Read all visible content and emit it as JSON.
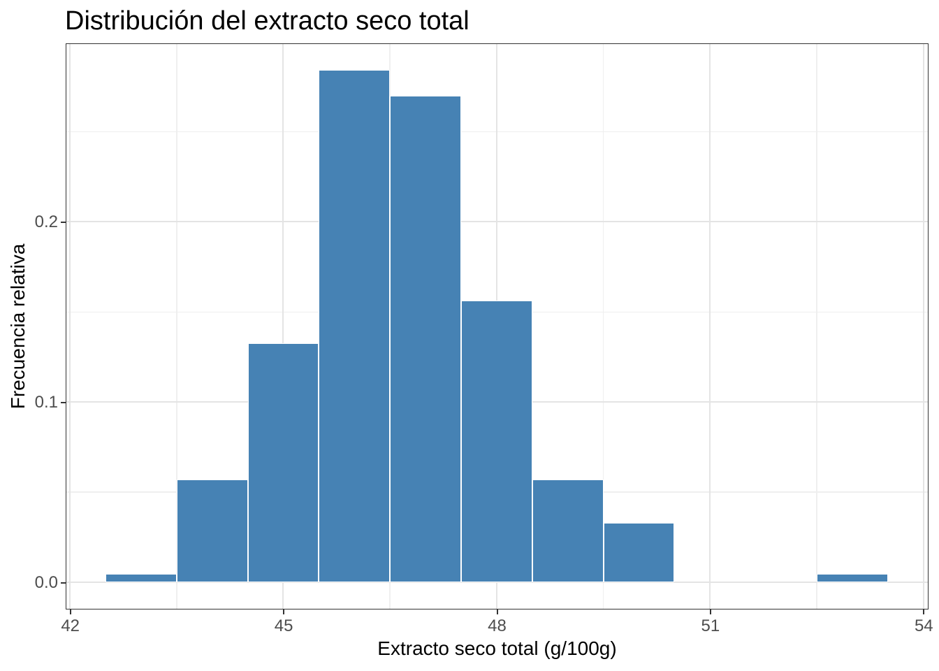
{
  "chart": {
    "title": "Distribución del extracto seco total",
    "x_label": "Extracto seco total (g/100g)",
    "y_label": "Frecuencia relativa"
  },
  "chart_data": {
    "type": "bar",
    "subtype": "histogram",
    "title": "Distribución del extracto seco total",
    "xlabel": "Extracto seco total (g/100g)",
    "ylabel": "Frecuencia relativa",
    "bins": [
      {
        "x0": 42.5,
        "x1": 43.5,
        "y": 0.0047
      },
      {
        "x0": 43.5,
        "x1": 44.5,
        "y": 0.0569
      },
      {
        "x0": 44.5,
        "x1": 45.5,
        "y": 0.1327
      },
      {
        "x0": 45.5,
        "x1": 46.5,
        "y": 0.2844
      },
      {
        "x0": 46.5,
        "x1": 47.5,
        "y": 0.2701
      },
      {
        "x0": 47.5,
        "x1": 48.5,
        "y": 0.1564
      },
      {
        "x0": 48.5,
        "x1": 49.5,
        "y": 0.0569
      },
      {
        "x0": 49.5,
        "x1": 50.5,
        "y": 0.0332
      },
      {
        "x0": 50.5,
        "x1": 51.5,
        "y": 0
      },
      {
        "x0": 51.5,
        "x1": 52.5,
        "y": 0
      },
      {
        "x0": 52.5,
        "x1": 53.5,
        "y": 0.0047
      }
    ],
    "x_ticks": [
      42,
      45,
      48,
      51,
      54
    ],
    "x_tick_labels": [
      "42",
      "45",
      "48",
      "51",
      "54"
    ],
    "x_minor_ticks": [
      43.5,
      46.5,
      49.5,
      52.5
    ],
    "y_ticks": [
      0,
      0.1,
      0.2
    ],
    "y_tick_labels": [
      "0.0",
      "0.1",
      "0.2"
    ],
    "y_minor_ticks": [
      0.05,
      0.15,
      0.25
    ],
    "x_domain": [
      41.95,
      54.05
    ],
    "y_domain": [
      -0.0142,
      0.2986
    ],
    "grid": "major+minor",
    "legend": "none",
    "colors": {
      "bar_fill": "#4682B4",
      "bar_stroke": "#FFFFFF",
      "grid_major": "#E4E4E4",
      "grid_minor": "#EFEFEF",
      "panel_border": "#333333",
      "tick_mark": "#333333",
      "tick_label": "#4D4D4D",
      "title": "#000000"
    }
  }
}
